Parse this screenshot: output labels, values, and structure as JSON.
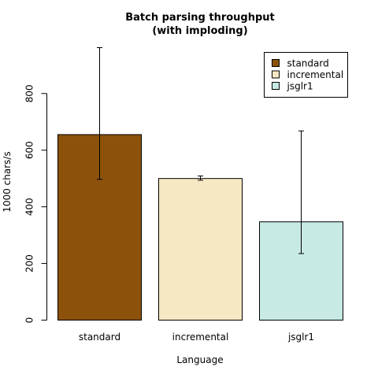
{
  "chart_data": {
    "type": "bar",
    "title_line1": "Batch parsing throughput",
    "title_line2": "(with imploding)",
    "xlabel": "Language",
    "ylabel": "1000 chars/s",
    "categories": [
      "standard",
      "incremental",
      "jsglr1"
    ],
    "values": [
      655,
      500,
      347
    ],
    "error_low": [
      497,
      494,
      235
    ],
    "error_high": [
      962,
      509,
      668
    ],
    "colors": [
      "#8C510A",
      "#F6E8C3",
      "#C7EAE5"
    ],
    "ylim": [
      0,
      962
    ],
    "yticks": [
      0,
      200,
      400,
      600,
      800
    ],
    "ytick_labels": [
      "0",
      "200",
      "400",
      "600",
      "800"
    ],
    "legend": {
      "placement": "top-right",
      "entries": [
        "standard",
        "incremental",
        "jsglr1"
      ]
    },
    "grid": false
  }
}
